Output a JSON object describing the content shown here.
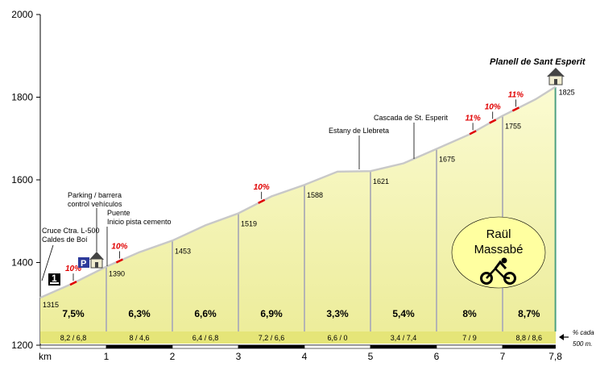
{
  "chart_data": {
    "type": "area",
    "xlabel": "km",
    "ylim": [
      1200,
      2000
    ],
    "xlim": [
      0,
      7.8
    ],
    "y_ticks": [
      1200,
      1400,
      1600,
      1800,
      2000
    ],
    "x_ticks": [
      {
        "value": 0,
        "label": "km"
      },
      {
        "value": 1,
        "label": "1"
      },
      {
        "value": 2,
        "label": "2"
      },
      {
        "value": 3,
        "label": "3"
      },
      {
        "value": 4,
        "label": "4"
      },
      {
        "value": 5,
        "label": "5"
      },
      {
        "value": 6,
        "label": "6"
      },
      {
        "value": 7,
        "label": "7"
      },
      {
        "value": 7.8,
        "label": "7,8"
      }
    ],
    "profile": {
      "x": [
        0,
        0.5,
        1,
        1.5,
        2,
        2.5,
        3,
        3.5,
        4,
        4.5,
        5,
        5.5,
        6,
        6.5,
        7,
        7.5,
        7.8
      ],
      "y": [
        1315,
        1350,
        1390,
        1425,
        1453,
        1490,
        1519,
        1560,
        1588,
        1620,
        1621,
        1640,
        1675,
        1710,
        1755,
        1795,
        1825
      ]
    },
    "km_markers": [
      {
        "x": 0,
        "elevation_label": "1315"
      },
      {
        "x": 1,
        "elevation_label": "1390"
      },
      {
        "x": 2,
        "elevation_label": "1453"
      },
      {
        "x": 3,
        "elevation_label": "1519"
      },
      {
        "x": 4,
        "elevation_label": "1588"
      },
      {
        "x": 5,
        "elevation_label": "1621"
      },
      {
        "x": 6,
        "elevation_label": "1675"
      },
      {
        "x": 7,
        "elevation_label": "1755"
      },
      {
        "x": 7.8,
        "elevation_label": "1825"
      }
    ],
    "segment_gradients": [
      "7,5%",
      "6,3%",
      "6,6%",
      "6,9%",
      "3,3%",
      "5,4%",
      "8%",
      "8,7%"
    ],
    "segment_splits": [
      "8,2  /  6,8",
      "8  /  4,6",
      "6,4  /  6,8",
      "7,2  /  6,6",
      "6,6  /  0",
      "3,4  /  7,4",
      "7  /  9",
      "8,8  /  8,6"
    ],
    "split_note": [
      "% cada",
      "500 m."
    ],
    "steep_marks": [
      {
        "x": 0.5,
        "label": "10%"
      },
      {
        "x": 1.2,
        "label": "10%"
      },
      {
        "x": 3.35,
        "label": "10%"
      },
      {
        "x": 6.55,
        "label": "11%"
      },
      {
        "x": 6.85,
        "label": "10%"
      },
      {
        "x": 7.2,
        "label": "11%"
      }
    ],
    "annotations": [
      {
        "lines": [
          "Cruce Ctra. L-500",
          "Caldes de Boí"
        ]
      },
      {
        "lines": [
          "Parking / barrera",
          "control vehículos"
        ]
      },
      {
        "lines": [
          "Puente",
          "Inicio pista cemento"
        ]
      },
      {
        "lines": [
          "Estany de Llebreta"
        ]
      },
      {
        "lines": [
          "Cascada de St. Esperit"
        ]
      }
    ],
    "summit_label": "Planell de Sant Esperit",
    "author_name": [
      "Raül",
      "Massabé"
    ],
    "start_marker": "1",
    "parking_marker": "P",
    "colors": {
      "fill_top": "#fbfbd2",
      "fill_bottom": "#ecec98",
      "band": "#e5e578",
      "profile_line": "#c8c8c8",
      "km_lines": "#b4b4b4",
      "steep": "#e00000",
      "badge": "#ffffa0"
    },
    "icons": [
      "start-flag-icon",
      "parking-icon",
      "refuge-house-icon",
      "summit-house-icon",
      "cyclist-icon"
    ]
  }
}
